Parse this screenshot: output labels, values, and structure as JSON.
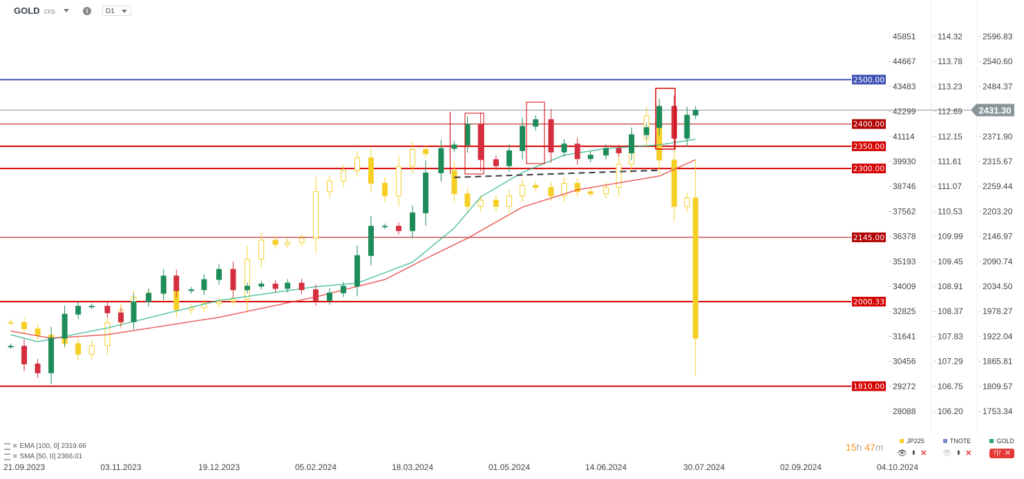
{
  "header": {
    "symbol": "GOLD",
    "type": "CFD",
    "timeframe": "D1"
  },
  "indicators": [
    {
      "label": "EMA [100,  0] 2319.66",
      "color": "#e53935"
    },
    {
      "label": "SMA [50,  0] 2366.01",
      "color": "#2bb58a"
    }
  ],
  "timer": {
    "hours": "15",
    "h": "h",
    "minutes": "47",
    "m": "m"
  },
  "legend": [
    {
      "name": "JP225",
      "color": "#f5cf26"
    },
    {
      "name": "TNOTE",
      "color": "#7b86c9"
    },
    {
      "name": "GOLD",
      "color": "#27a96b"
    }
  ],
  "current_price": "2431.30",
  "chart_data": {
    "type": "candlestick",
    "x_tick_labels": [
      "21.09.2023",
      "03.11.2023",
      "19.12.2023",
      "05.02.2024",
      "18.03.2024",
      "01.05.2024",
      "14.06.2024",
      "30.07.2024",
      "02.09.2024",
      "04.10.2024"
    ],
    "axes": {
      "JP225": [
        "45851",
        "44667",
        "43483",
        "42299",
        "41114",
        "39930",
        "38746",
        "37562",
        "36378",
        "35193",
        "34009",
        "32825",
        "31641",
        "30456",
        "29272",
        "28088"
      ],
      "TNOTE": [
        "114.32",
        "113.78",
        "113.23",
        "112.69",
        "112.15",
        "111.61",
        "111.07",
        "110.53",
        "109.99",
        "109.45",
        "108.91",
        "108.37",
        "107.83",
        "107.29",
        "106.75",
        "106.20"
      ],
      "GOLD": [
        "2596.83",
        "2540.60",
        "2484.37",
        "2431.30",
        "2371.90",
        "2315.67",
        "2259.44",
        "2203.20",
        "2146.97",
        "2090.74",
        "2034.50",
        "1978.27",
        "1922.04",
        "1865.81",
        "1809.57",
        "1753.34"
      ]
    },
    "ylim_gold": [
      1753.34,
      2596.83
    ],
    "ylim_jp225": [
      28088,
      45851
    ],
    "x": [
      "15.09.2023",
      "21.09.2023",
      "27.09.2023",
      "03.10.2023",
      "09.10.2023",
      "15.10.2023",
      "21.10.2023",
      "28.10.2023",
      "03.11.2023",
      "09.11.2023",
      "16.11.2023",
      "23.11.2023",
      "29.11.2023",
      "06.12.2023",
      "12.12.2023",
      "19.12.2023",
      "26.12.2023",
      "02.01.2024",
      "09.01.2024",
      "16.01.2024",
      "22.01.2024",
      "29.01.2024",
      "05.02.2024",
      "11.02.2024",
      "17.02.2024",
      "23.02.2024",
      "29.02.2024",
      "06.03.2024",
      "12.03.2024",
      "18.03.2024",
      "24.03.2024",
      "31.03.2024",
      "06.04.2024",
      "12.04.2024",
      "18.04.2024",
      "25.04.2024",
      "01.05.2024",
      "07.05.2024",
      "13.05.2024",
      "20.05.2024",
      "26.05.2024",
      "01.06.2024",
      "07.06.2024",
      "14.06.2024",
      "20.06.2024",
      "26.06.2024",
      "03.07.2024",
      "09.07.2024",
      "16.07.2024",
      "22.07.2024",
      "26.07.2024"
    ],
    "series": [
      {
        "name": "GOLD",
        "color_up": "#1e8c5a",
        "color_down": "#d32f3f",
        "values": [
          1900,
          1860,
          1840,
          1918,
          1972,
          1990,
          1990,
          1975,
          1955,
          2000,
          2019,
          2058,
          2025,
          2027,
          2050,
          2073,
          2027,
          2035,
          2040,
          2030,
          2042,
          2027,
          2003,
          2020,
          2035,
          2104,
          2170,
          2170,
          2160,
          2200,
          2290,
          2345,
          2353,
          2400,
          2320,
          2306,
          2340,
          2395,
          2410,
          2337,
          2355,
          2322,
          2330,
          2345,
          2335,
          2376,
          2392,
          2440,
          2368,
          2420,
          2431.3
        ]
      },
      {
        "name": "JP225",
        "color": "#f5cf26",
        "values": [
          32300,
          32000,
          31700,
          31600,
          31300,
          30800,
          31200,
          32300,
          32900,
          33500,
          33700,
          33800,
          32900,
          33000,
          33200,
          33300,
          33400,
          35300,
          36200,
          36000,
          36100,
          36300,
          38500,
          39000,
          39500,
          40100,
          38900,
          38300,
          39700,
          40500,
          40300,
          39500,
          38400,
          37800,
          38100,
          37800,
          38300,
          38800,
          38700,
          38300,
          38900,
          38500,
          38400,
          38700,
          39800,
          41000,
          42100,
          40000,
          37800,
          38200,
          31557
        ]
      }
    ],
    "sma50": {
      "x": [
        "15.09.2023",
        "27.09.2023",
        "28.10.2023",
        "19.12.2023",
        "05.02.2024",
        "23.02.2024",
        "18.03.2024",
        "06.04.2024",
        "18.04.2024",
        "07.05.2024",
        "26.05.2024",
        "14.06.2024",
        "09.07.2024",
        "26.07.2024"
      ],
      "values": [
        1926,
        1910,
        1941,
        2003,
        2034,
        2042,
        2089,
        2166,
        2236,
        2291,
        2330,
        2345,
        2353,
        2366.01
      ]
    },
    "ema100": {
      "x": [
        "15.09.2023",
        "03.10.2023",
        "28.10.2023",
        "19.12.2023",
        "05.02.2024",
        "06.03.2024",
        "24.03.2024",
        "12.04.2024",
        "07.05.2024",
        "01.06.2024",
        "09.07.2024",
        "26.07.2024"
      ],
      "values": [
        1934,
        1918,
        1926,
        1965,
        2011,
        2050,
        2097,
        2143,
        2213,
        2252,
        2283,
        2319.66
      ]
    },
    "levels": [
      {
        "label": "2500.00",
        "value": 2500,
        "color": "#3f51b5"
      },
      {
        "label": "2400.00",
        "value": 2400,
        "color": "#b00000"
      },
      {
        "label": "2350.00",
        "value": 2350,
        "color": "#d50000"
      },
      {
        "label": "2300.00",
        "value": 2300,
        "color": "#d50000"
      },
      {
        "label": "2145.00",
        "value": 2145,
        "color": "#b00000"
      },
      {
        "label": "2000.33",
        "value": 2000.33,
        "color": "#d50000"
      },
      {
        "label": "1810.00",
        "value": 1810,
        "color": "#d50000"
      }
    ],
    "trendline": {
      "x": [
        "06.04.2024",
        "09.07.2024"
      ],
      "values": [
        2280,
        2296
      ],
      "style": "dashed"
    },
    "grid": false
  }
}
